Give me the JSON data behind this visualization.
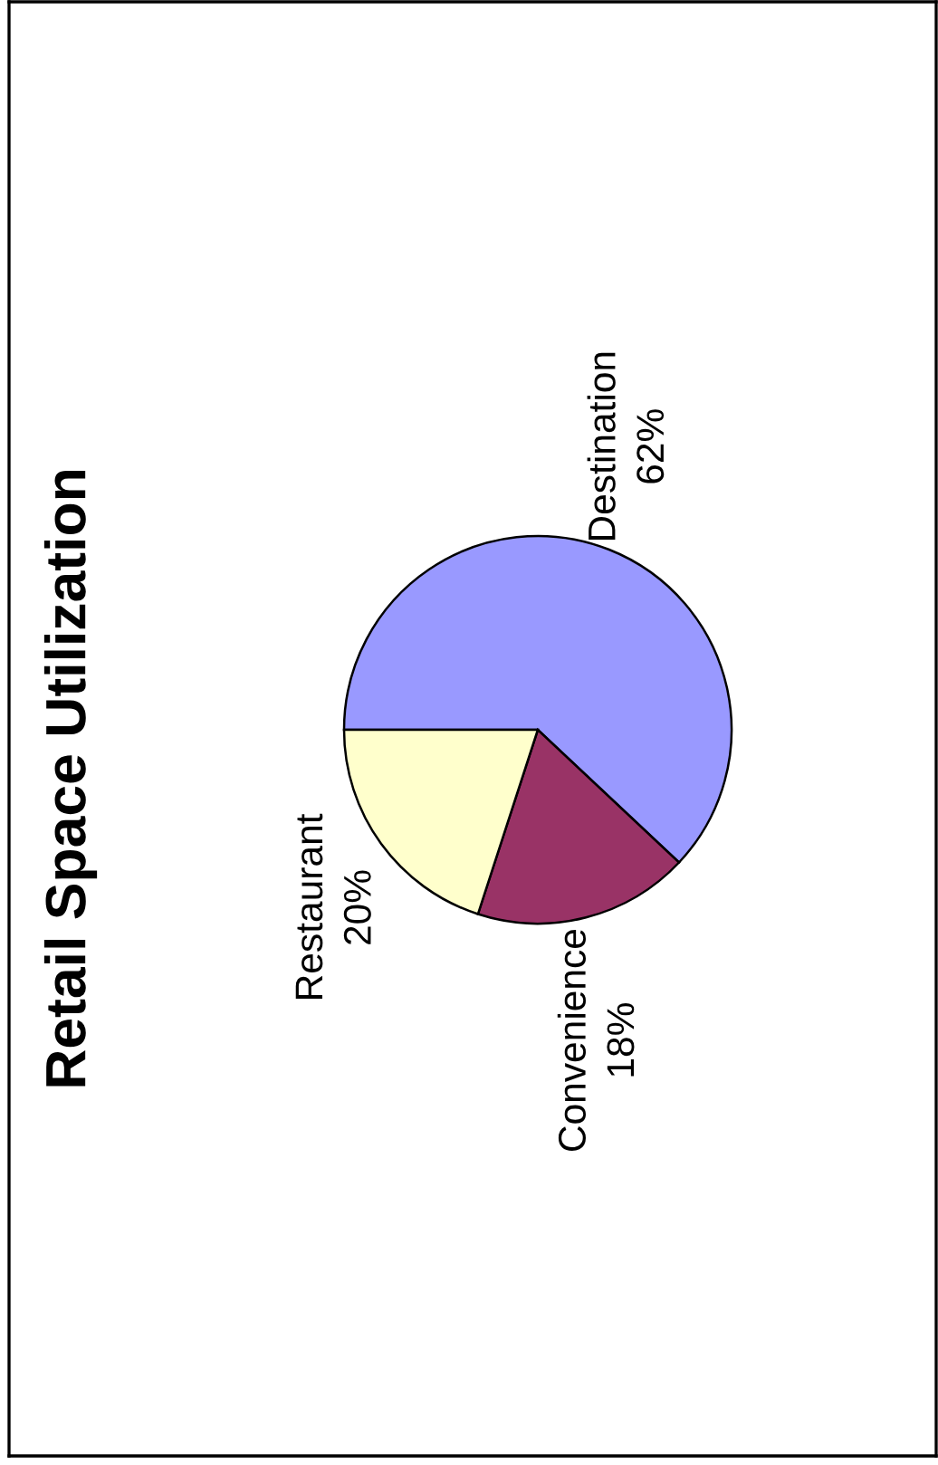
{
  "chart_data": {
    "type": "pie",
    "title": "Retail Space Utilization",
    "categories": [
      "Destination",
      "Convenience",
      "Restaurant"
    ],
    "values": [
      62,
      18,
      20
    ],
    "value_labels": [
      "62%",
      "18%",
      "20%"
    ],
    "colors": [
      "#9999ff",
      "#993366",
      "#ffffcc"
    ]
  }
}
